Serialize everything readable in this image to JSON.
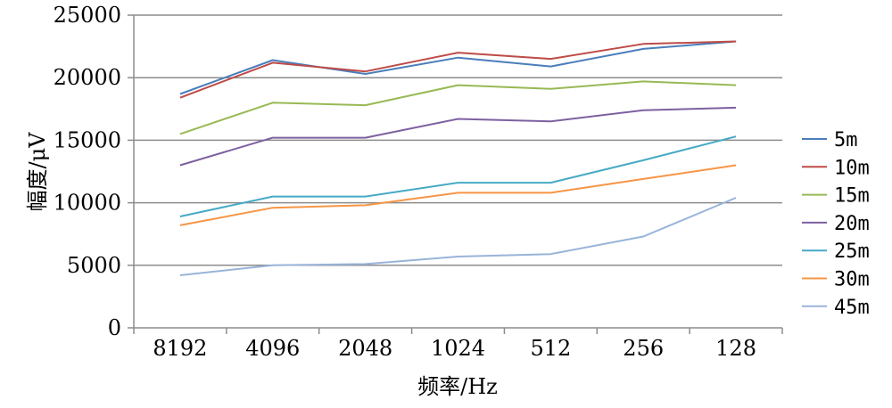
{
  "chart_data": {
    "type": "line",
    "title": "",
    "xlabel": "频率/Hz",
    "ylabel": "幅度/μV",
    "categories": [
      "8192",
      "4096",
      "2048",
      "1024",
      "512",
      "256",
      "128"
    ],
    "ylim": [
      0,
      25000
    ],
    "yticks": [
      "0",
      "5000",
      "10000",
      "15000",
      "20000",
      "25000"
    ],
    "grid": true,
    "legend_position": "right",
    "series": [
      {
        "name": "5m",
        "color": "#4a7ebb",
        "values": [
          18700,
          21400,
          20300,
          21600,
          20900,
          22300,
          22900
        ]
      },
      {
        "name": "10m",
        "color": "#be4b48",
        "values": [
          18400,
          21200,
          20500,
          22000,
          21500,
          22700,
          22900
        ]
      },
      {
        "name": "15m",
        "color": "#98b954",
        "values": [
          15500,
          18000,
          17800,
          19400,
          19100,
          19700,
          19400
        ]
      },
      {
        "name": "20m",
        "color": "#7d60a0",
        "values": [
          13000,
          15200,
          15200,
          16700,
          16500,
          17400,
          17600
        ]
      },
      {
        "name": "25m",
        "color": "#46aac5",
        "values": [
          8900,
          10500,
          10500,
          11600,
          11600,
          13400,
          15300
        ]
      },
      {
        "name": "30m",
        "color": "#f69545",
        "values": [
          8200,
          9600,
          9800,
          10800,
          10800,
          11900,
          13000
        ]
      },
      {
        "name": "45m",
        "color": "#98b4d9",
        "values": [
          4200,
          5000,
          5100,
          5700,
          5900,
          7300,
          10400
        ]
      }
    ]
  }
}
